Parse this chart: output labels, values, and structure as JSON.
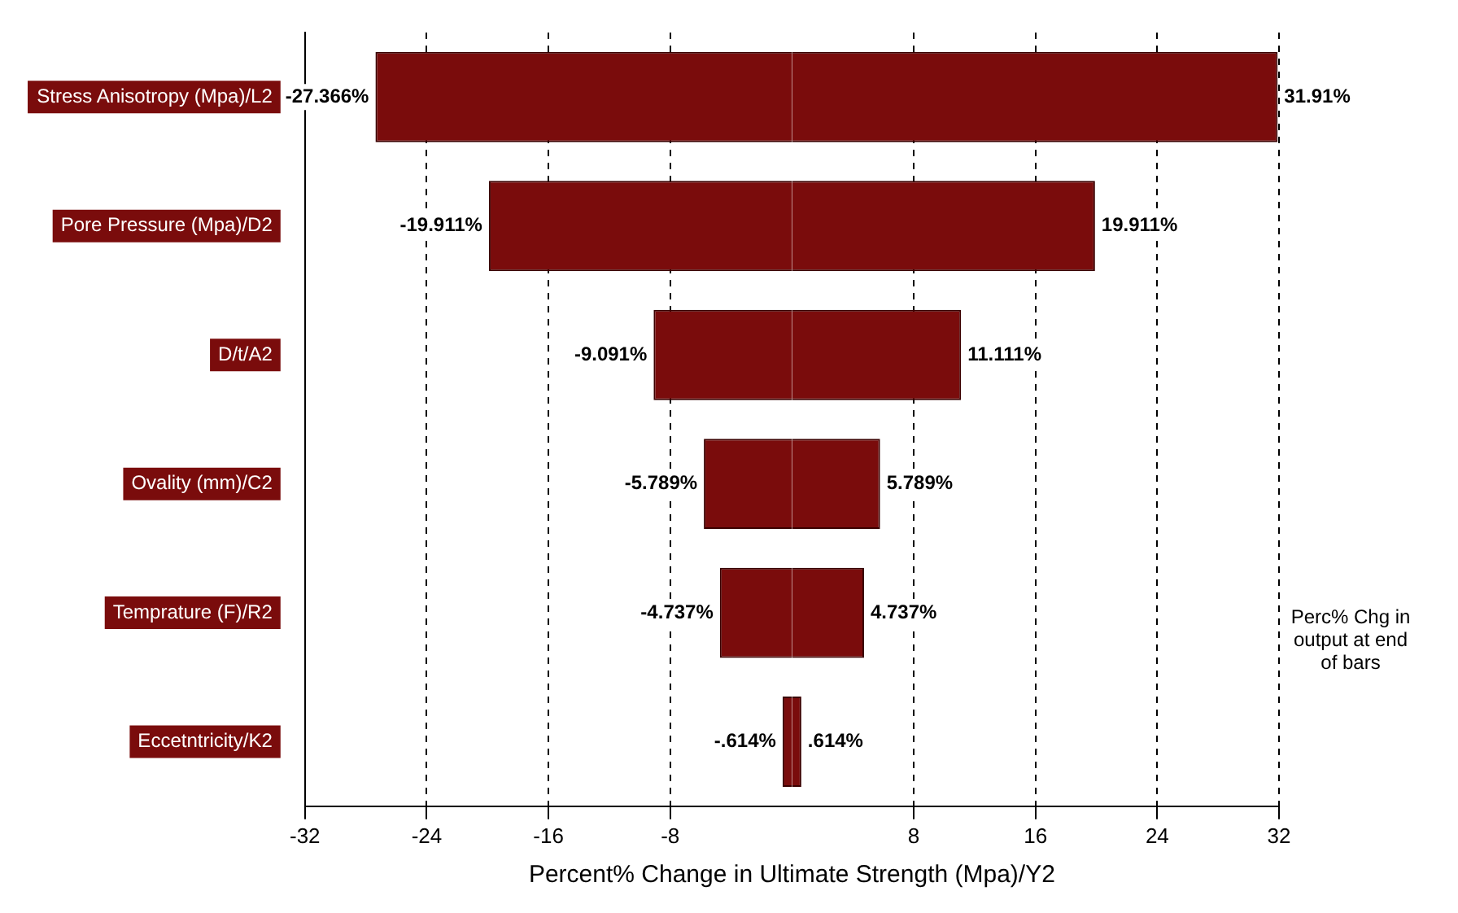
{
  "chart_data": {
    "type": "bar",
    "orientation": "horizontal",
    "stacked": true,
    "categories": [
      "Stress Anisotropy (Mpa)/L2",
      "Pore Pressure (Mpa)/D2",
      "D/t/A2",
      "Ovality (mm)/C2",
      "Temprature (F)/R2",
      "Eccetntricity/K2"
    ],
    "series": [
      {
        "color": "#7a0c0c",
        "values": [
          -27.366,
          -19.911,
          -9.091,
          -5.789,
          -4.737,
          -0.614
        ],
        "value_labels": [
          "-27.366%",
          "-19.911%",
          "-9.091%",
          "-5.789%",
          "-4.737%",
          "-.614%"
        ]
      },
      {
        "color": "#7a0c0c",
        "values": [
          31.91,
          19.911,
          11.111,
          5.789,
          4.737,
          0.614
        ],
        "value_labels": [
          "31.91%",
          "19.911%",
          "11.111%",
          "5.789%",
          "4.737%",
          ".614%"
        ]
      }
    ],
    "xlim": [
      -32,
      32
    ],
    "xticks": [
      -32,
      -24,
      -16,
      -8,
      8,
      16,
      24,
      32
    ],
    "xlabel": "Percent% Change in Ultimate Strength (Mpa)/Y2",
    "grid": "x",
    "legend": false,
    "annotations": [
      "Perc% Chg in output at end of bars"
    ]
  }
}
